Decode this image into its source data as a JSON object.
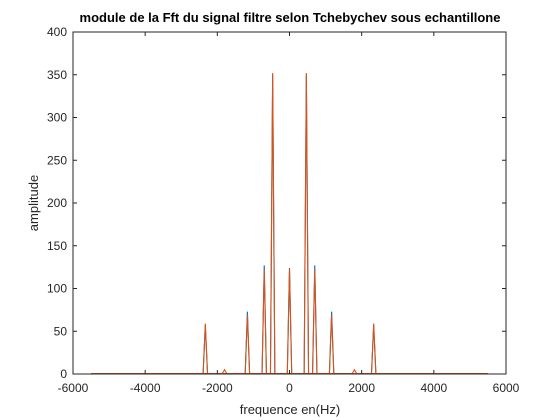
{
  "chart_data": {
    "type": "line",
    "title": "module de la Fft du signal filtre selon Tchebychev sous echantillone",
    "xlabel": "frequence en(Hz)",
    "ylabel": "amplitude",
    "xlim": [
      -6000,
      6000
    ],
    "ylim": [
      0,
      400
    ],
    "xticks": [
      -6000,
      -4000,
      -2000,
      0,
      2000,
      4000,
      6000
    ],
    "yticks": [
      0,
      50,
      100,
      150,
      200,
      250,
      300,
      350,
      400
    ],
    "grid": false,
    "legend": "none",
    "baseline_range": [
      -5500,
      5500
    ],
    "series": [
      {
        "color": "#0072BD",
        "x": [
          -2333,
          -1167,
          -700,
          -467,
          0,
          467,
          700,
          1167,
          2333
        ],
        "y": [
          57,
          73,
          127,
          350,
          124,
          350,
          127,
          73,
          57
        ]
      },
      {
        "color": "#D95319",
        "x": [
          -2333,
          -1800,
          -1167,
          -700,
          -467,
          0,
          467,
          700,
          1167,
          1800,
          2333
        ],
        "y": [
          59,
          5,
          69,
          122,
          352,
          123,
          352,
          122,
          69,
          5,
          59
        ]
      }
    ]
  }
}
